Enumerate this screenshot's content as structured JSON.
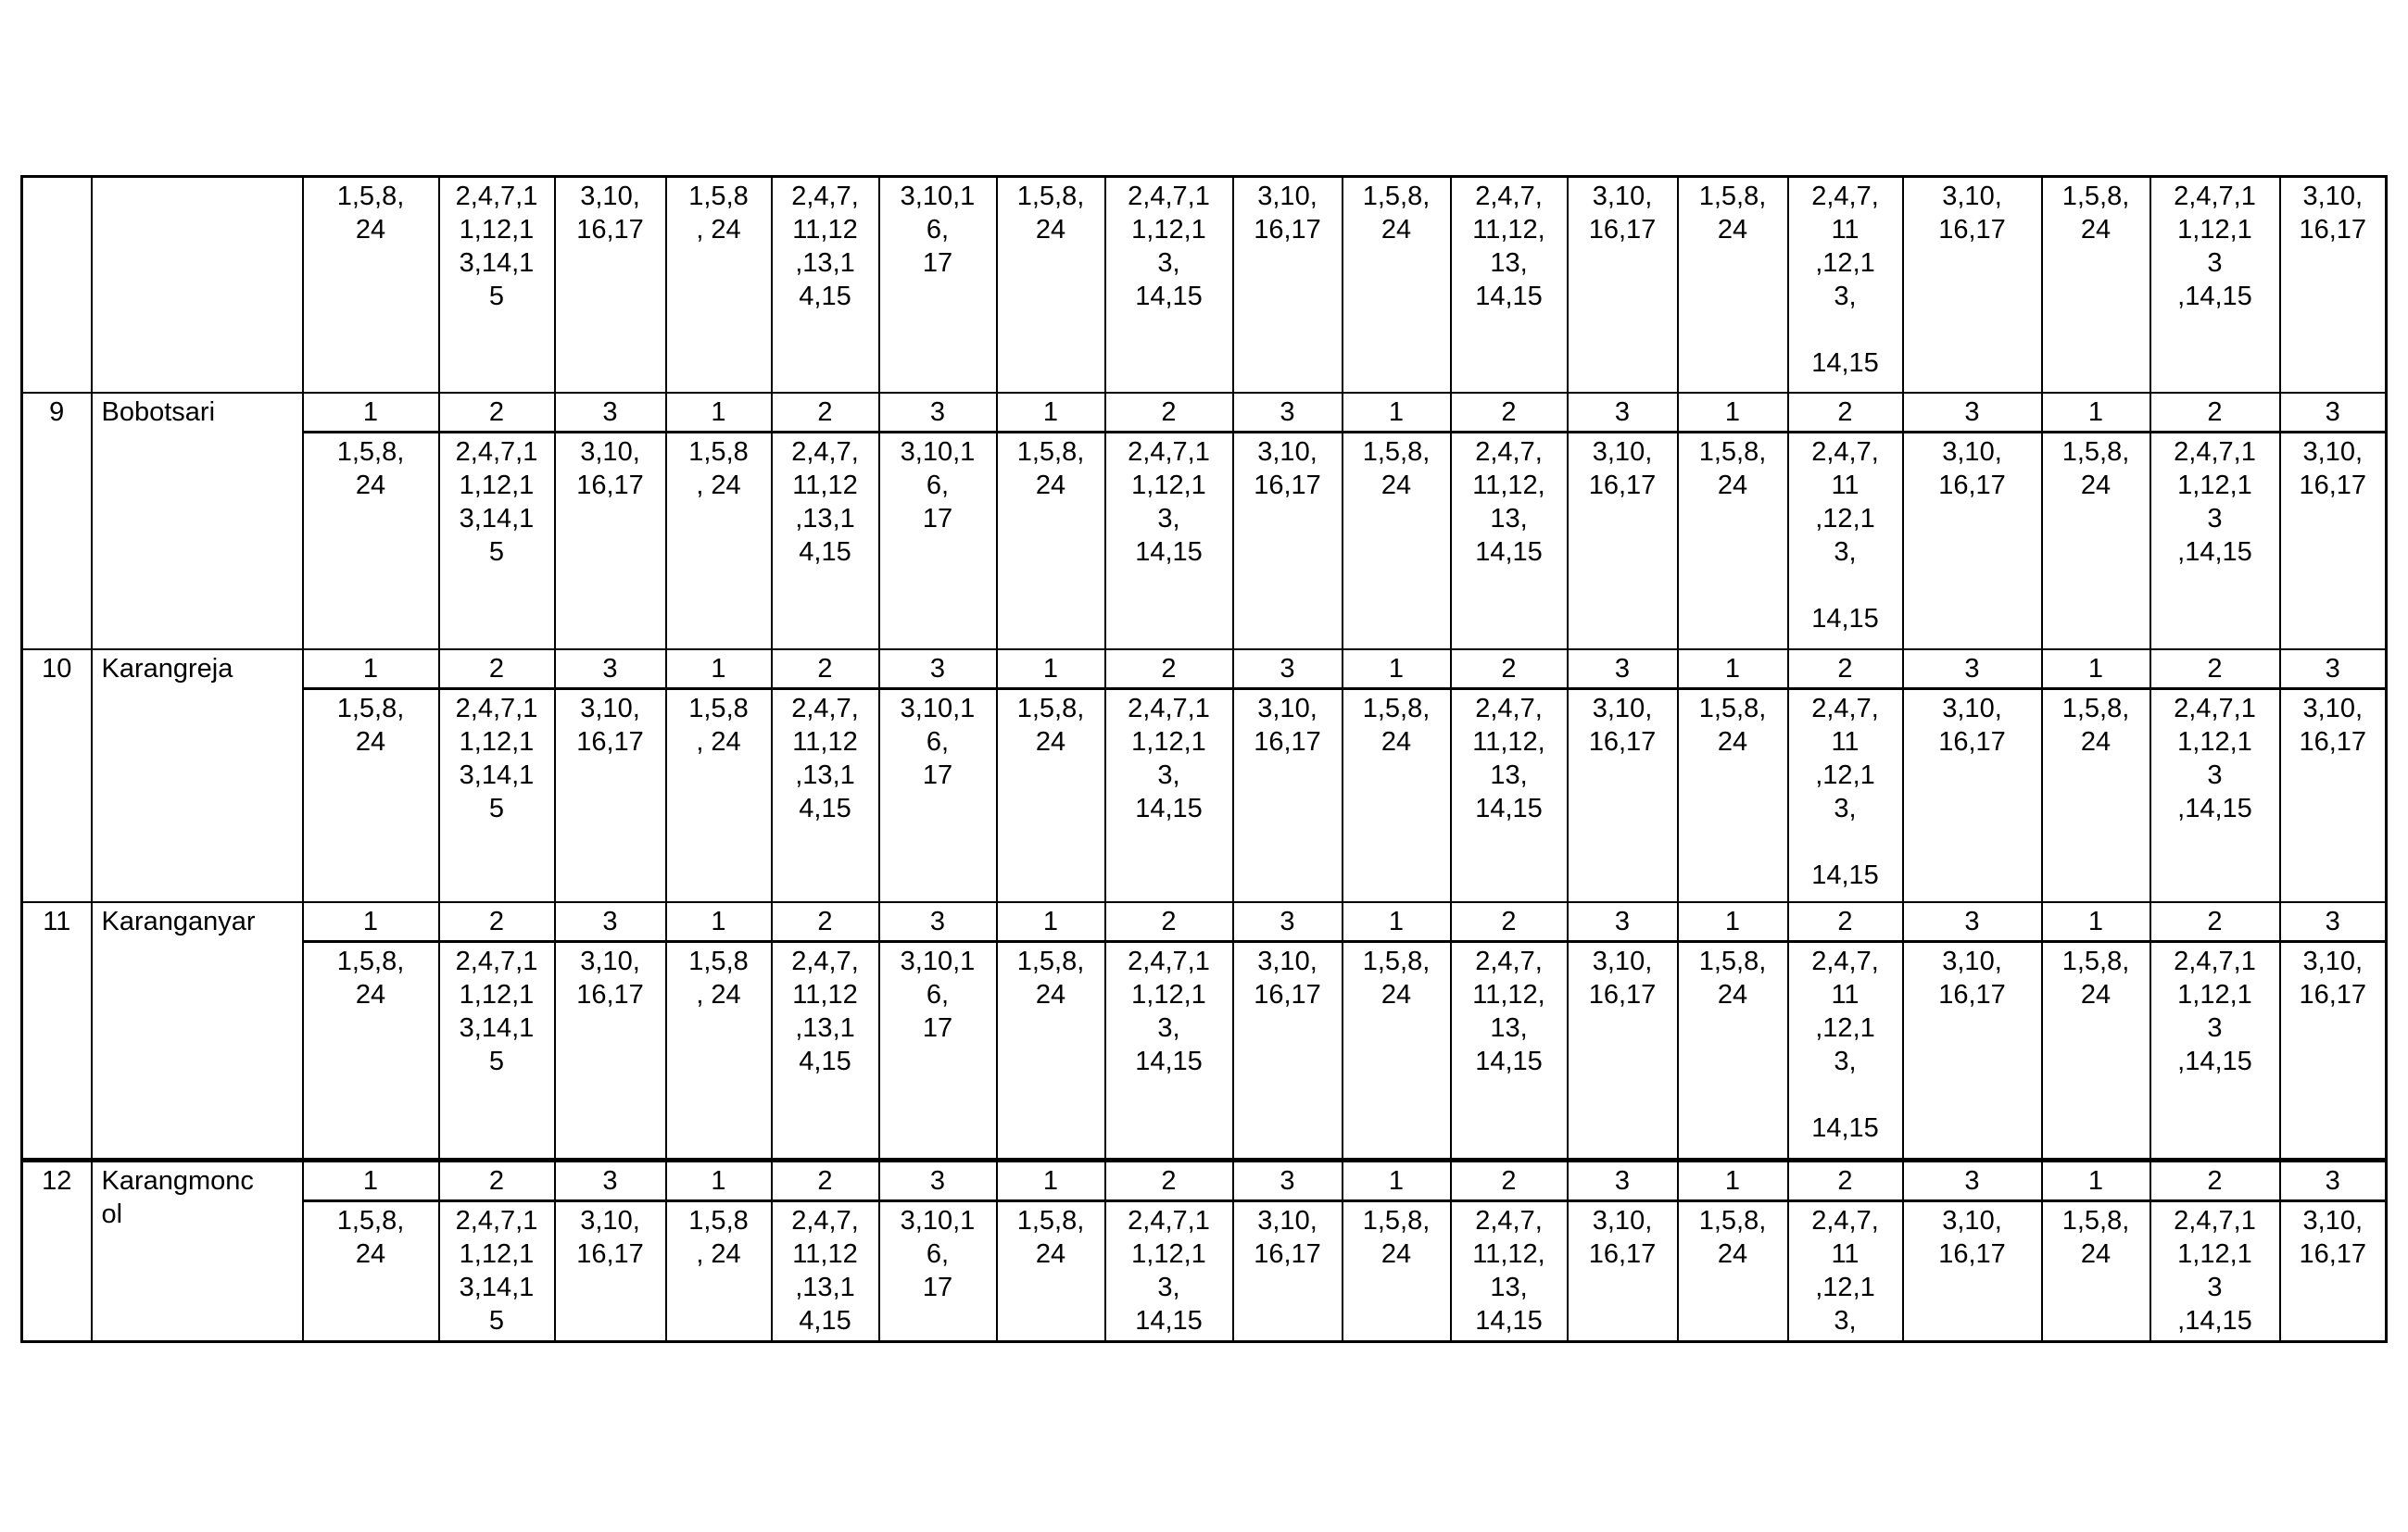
{
  "table": {
    "digit_headers": [
      "1",
      "2",
      "3",
      "1",
      "2",
      "3",
      "1",
      "2",
      "3",
      "1",
      "2",
      "3",
      "1",
      "2",
      "3",
      "1",
      "2",
      "3"
    ],
    "continuation_row": {
      "cells": [
        "1,5,8,\n24",
        "2,4,7,1\n1,12,1\n3,14,1\n5",
        "3,10,\n16,17",
        "1,5,8\n, 24",
        "2,4,7,\n11,12\n,13,1\n4,15",
        "3,10,1\n6,\n17",
        "1,5,8,\n24",
        "2,4,7,1\n1,12,1\n3,\n14,15",
        "3,10,\n16,17",
        "1,5,8,\n24",
        "2,4,7,\n11,12,\n13,\n14,15",
        "3,10,\n16,17",
        "1,5,8,\n24",
        "2,4,7,\n11\n,12,1\n3,\n\n14,15",
        "3,10,\n16,17",
        "1,5,8,\n24",
        "2,4,7,1\n1,12,1\n3\n,14,15",
        "3,10,\n16,17"
      ]
    },
    "rows": [
      {
        "no": "9",
        "name": "Bobotsari",
        "cells": [
          "1,5,8,\n24",
          "2,4,7,1\n1,12,1\n3,14,1\n5",
          "3,10,\n16,17",
          "1,5,8\n, 24",
          "2,4,7,\n11,12\n,13,1\n4,15",
          "3,10,1\n6,\n17",
          "1,5,8,\n24",
          "2,4,7,1\n1,12,1\n3,\n14,15",
          "3,10,\n16,17",
          "1,5,8,\n24",
          "2,4,7,\n11,12,\n13,\n14,15",
          "3,10,\n16,17",
          "1,5,8,\n24",
          "2,4,7,\n11\n,12,1\n3,\n\n14,15",
          "3,10,\n16,17",
          "1,5,8,\n24",
          "2,4,7,1\n1,12,1\n3\n,14,15",
          "3,10,\n16,17"
        ]
      },
      {
        "no": "10",
        "name": "Karangreja",
        "cells": [
          "1,5,8,\n24",
          "2,4,7,1\n1,12,1\n3,14,1\n5",
          "3,10,\n16,17",
          "1,5,8\n, 24",
          "2,4,7,\n11,12\n,13,1\n4,15",
          "3,10,1\n6,\n17",
          "1,5,8,\n24",
          "2,4,7,1\n1,12,1\n3,\n14,15",
          "3,10,\n16,17",
          "1,5,8,\n24",
          "2,4,7,\n11,12,\n13,\n14,15",
          "3,10,\n16,17",
          "1,5,8,\n24",
          "2,4,7,\n11\n,12,1\n3,\n\n14,15",
          "3,10,\n16,17",
          "1,5,8,\n24",
          "2,4,7,1\n1,12,1\n3\n,14,15",
          "3,10,\n16,17"
        ]
      },
      {
        "no": "11",
        "name": "Karanganyar",
        "cells": [
          "1,5,8,\n24",
          "2,4,7,1\n1,12,1\n3,14,1\n5",
          "3,10,\n16,17",
          "1,5,8\n, 24",
          "2,4,7,\n11,12\n,13,1\n4,15",
          "3,10,1\n6,\n17",
          "1,5,8,\n24",
          "2,4,7,1\n1,12,1\n3,\n14,15",
          "3,10,\n16,17",
          "1,5,8,\n24",
          "2,4,7,\n11,12,\n13,\n14,15",
          "3,10,\n16,17",
          "1,5,8,\n24",
          "2,4,7,\n11\n,12,1\n3,\n\n14,15",
          "3,10,\n16,17",
          "1,5,8,\n24",
          "2,4,7,1\n1,12,1\n3\n,14,15",
          "3,10,\n16,17"
        ]
      },
      {
        "no": "12",
        "name": "Karangmonc\nol",
        "cells": [
          "1,5,8,\n24",
          "2,4,7,1\n1,12,1\n3,14,1\n5",
          "3,10,\n16,17",
          "1,5,8\n, 24",
          "2,4,7,\n11,12\n,13,1\n4,15",
          "3,10,1\n6,\n17",
          "1,5,8,\n24",
          "2,4,7,1\n1,12,1\n3,\n14,15",
          "3,10,\n16,17",
          "1,5,8,\n24",
          "2,4,7,\n11,12,\n13,\n14,15",
          "3,10,\n16,17",
          "1,5,8,\n24",
          "2,4,7,\n11\n,12,1\n3,",
          "3,10,\n16,17",
          "1,5,8,\n24",
          "2,4,7,1\n1,12,1\n3\n,14,15",
          "3,10,\n16,17"
        ]
      }
    ]
  }
}
